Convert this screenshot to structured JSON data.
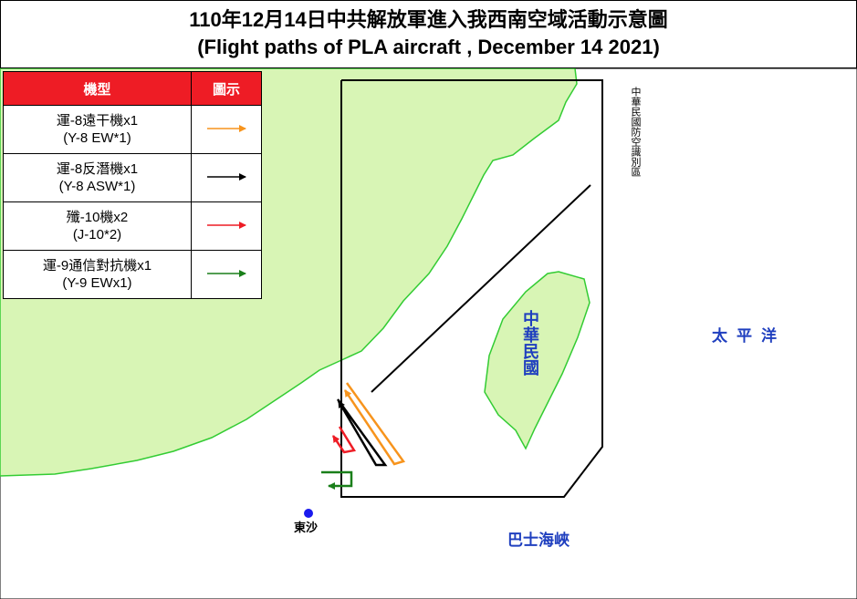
{
  "header": {
    "title_zh": "110年12月14日中共解放軍進入我西南空域活動示意圖",
    "title_en": "(Flight paths of PLA aircraft , December 14 2021)"
  },
  "legend": {
    "headers": [
      "機型",
      "圖示"
    ],
    "rows": [
      {
        "name": "運-8遠干機x1",
        "name_en": "(Y-8 EW*1)",
        "color": "#f7941d"
      },
      {
        "name": "運-8反潛機x1",
        "name_en": "(Y-8 ASW*1)",
        "color": "#000000"
      },
      {
        "name": "殲-10機x2",
        "name_en": "(J-10*2)",
        "color": "#ee1c25"
      },
      {
        "name": "運-9通信對抗機x1",
        "name_en": "(Y-9 EWx1)",
        "color": "#1a7f1a"
      }
    ]
  },
  "map": {
    "adiz": "中華民國防空識別區",
    "taiwan": "中華民國",
    "pacific": "太平洋",
    "bashi": "巴士海峽",
    "dongsha": "東沙"
  }
}
